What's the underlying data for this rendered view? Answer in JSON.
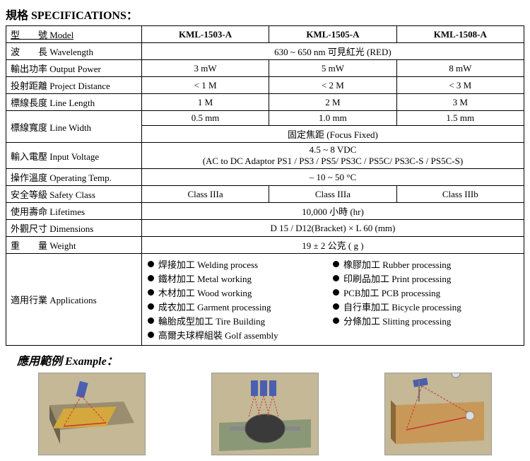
{
  "title": "規格 SPECIFICATIONS：",
  "header": {
    "label": "型　　號 Model",
    "c1": "KML-1503-A",
    "c2": "KML-1505-A",
    "c3": "KML-1508-A"
  },
  "rows": {
    "wavelength": {
      "label": "波　　長 Wavelength",
      "val": "630 ~ 650 nm 可見紅光 (RED)"
    },
    "power": {
      "label": "輸出功率 Output Power",
      "c1": "3 mW",
      "c2": "5 mW",
      "c3": "8 mW"
    },
    "distance": {
      "label": "投射距離 Project Distance",
      "c1": "< 1 M",
      "c2": "< 2 M",
      "c3": "< 3 M"
    },
    "linelen": {
      "label": "標線長度 Line Length",
      "c1": "1 M",
      "c2": "2 M",
      "c3": "3 M"
    },
    "linewidth_label": "標線寬度 Line Width",
    "linewidth": {
      "c1": "0.5 mm",
      "c2": "1.0 mm",
      "c3": "1.5 mm"
    },
    "focus": "固定焦距 (Focus Fixed)",
    "voltage_label": "輸入電壓 Input Voltage",
    "voltage1": "4.5 ~ 8 VDC",
    "voltage2": "(AC to DC Adaptor PS1 / PS3 / PS5/ PS3C / PS5C/ PS3C-S / PS5C-S)",
    "temp": {
      "label": "操作溫度 Operating Temp.",
      "val": "– 10 ~ 50 °C"
    },
    "safety": {
      "label": "安全等級 Safety Class",
      "c1": "Class IIIa",
      "c2": "Class IIIa",
      "c3": "Class IIIb"
    },
    "life": {
      "label": "使用壽命 Lifetimes",
      "val": "10,000 小時 (hr)"
    },
    "dim": {
      "label": "外觀尺寸 Dimensions",
      "val": "D 15 / D12(Bracket) × L 60 (mm)"
    },
    "weight": {
      "label": "重　　量 Weight",
      "val": "19 ± 2 公克 ( g )"
    },
    "apps_label": "適用行業 Applications"
  },
  "apps_left": [
    "焊接加工  Welding process",
    "鐵材加工  Metal working",
    "木材加工  Wood working",
    "成衣加工  Garment processing",
    "輪胎成型加工  Tire Building",
    "高爾夫球桿組裝  Golf assembly"
  ],
  "apps_right": [
    "橡膠加工  Rubber processing",
    "印刷品加工  Print processing",
    "PCB加工  PCB processing",
    "自行車加工  Bicycle processing",
    "分條加工  Slitting processing"
  ],
  "example_title": "應用範例 Example：",
  "colors": {
    "laser_blue": "#4a5fb0",
    "laser_red": "#d03030",
    "bg_tan": "#c4b896",
    "surface": "#a89878",
    "dark": "#5a5248"
  }
}
